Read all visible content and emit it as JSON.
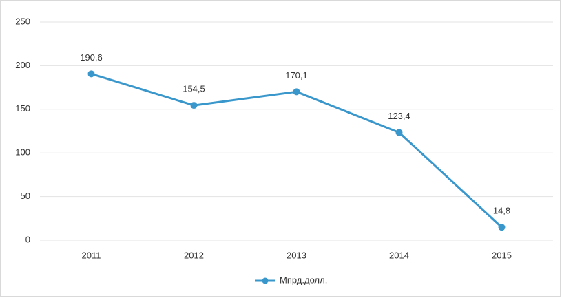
{
  "chart_data": {
    "type": "line",
    "categories": [
      "2011",
      "2012",
      "2013",
      "2014",
      "2015"
    ],
    "series": [
      {
        "name": "Мпрд.долл.",
        "color": "#3a97cc",
        "values": [
          190.6,
          154.5,
          170.1,
          123.4,
          14.8
        ],
        "value_labels": [
          "190,6",
          "154,5",
          "170,1",
          "123,4",
          "14,8"
        ]
      }
    ],
    "ylim": [
      0,
      250
    ],
    "yticks": [
      0,
      50,
      100,
      150,
      200,
      250
    ],
    "grid": true,
    "legend": "bottom"
  }
}
